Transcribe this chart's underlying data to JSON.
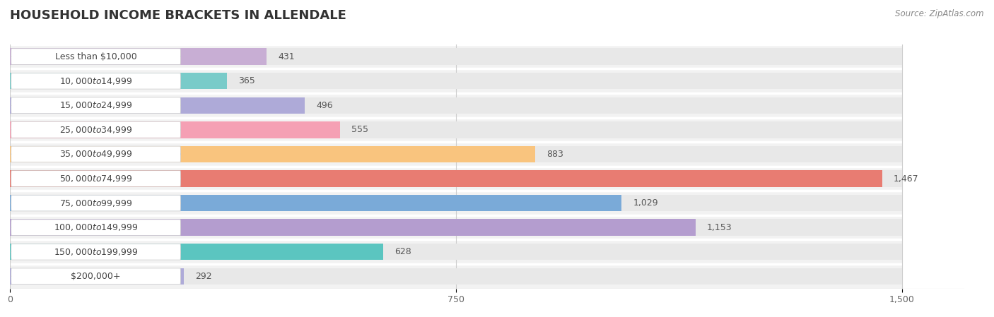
{
  "title": "HOUSEHOLD INCOME BRACKETS IN ALLENDALE",
  "source": "Source: ZipAtlas.com",
  "categories": [
    "Less than $10,000",
    "$10,000 to $14,999",
    "$15,000 to $24,999",
    "$25,000 to $34,999",
    "$35,000 to $49,999",
    "$50,000 to $74,999",
    "$75,000 to $99,999",
    "$100,000 to $149,999",
    "$150,000 to $199,999",
    "$200,000+"
  ],
  "values": [
    431,
    365,
    496,
    555,
    883,
    1467,
    1029,
    1153,
    628,
    292
  ],
  "bar_colors": [
    "#c8aed4",
    "#79cbc9",
    "#aeaad8",
    "#f5a0b4",
    "#f9c47e",
    "#e87c72",
    "#7aaad8",
    "#b49dcf",
    "#5bc5c0",
    "#aeaad8"
  ],
  "xlim_max": 1500,
  "xticks": [
    0,
    750,
    1500
  ],
  "bg_color": "#ffffff",
  "row_bg_color": "#f2f2f2",
  "full_bar_color": "#e8e8e8",
  "title_fontsize": 13,
  "label_fontsize": 9,
  "value_fontsize": 9,
  "tick_fontsize": 9
}
